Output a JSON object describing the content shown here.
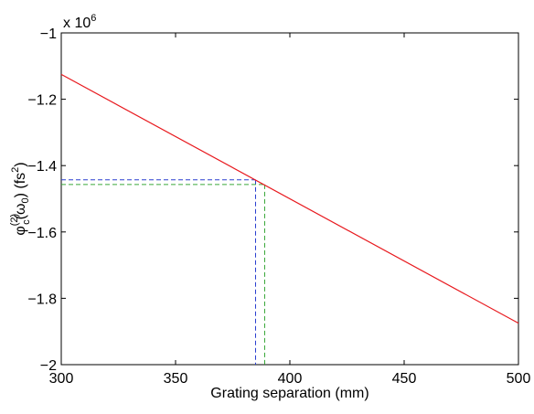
{
  "chart_data": {
    "type": "line",
    "xlabel": "Grating separation (mm)",
    "ylabel": {
      "phi": "φ",
      "sup": "(2)",
      "sub_c": "c",
      "omega": "(ω",
      "sub_0": "0",
      "rest": ") (fs",
      "sup2": "2",
      "close": ")"
    },
    "multiplier": {
      "base": "x 10",
      "exp": "6"
    },
    "xlim": [
      300,
      500
    ],
    "ylim": [
      -2.0,
      -1.0
    ],
    "x_ticks": [
      {
        "value": 300,
        "label": "300"
      },
      {
        "value": 350,
        "label": "350"
      },
      {
        "value": 400,
        "label": "400"
      },
      {
        "value": 450,
        "label": "450"
      },
      {
        "value": 500,
        "label": "500"
      }
    ],
    "y_ticks": [
      {
        "value": -1.0,
        "label": "−1"
      },
      {
        "value": -1.2,
        "label": "−1.2"
      },
      {
        "value": -1.4,
        "label": "−1.4"
      },
      {
        "value": -1.6,
        "label": "−1.6"
      },
      {
        "value": -1.8,
        "label": "−1.8"
      },
      {
        "value": -2.0,
        "label": "−2"
      }
    ],
    "grid": false,
    "series": [
      {
        "color": "#e8191e",
        "style": "solid",
        "x": [
          300,
          500
        ],
        "y": [
          -1.125,
          -1.875
        ]
      }
    ],
    "reference_lines": [
      {
        "color": "#2a3fcf",
        "x": 385,
        "y": -1.443
      },
      {
        "color": "#3aa83a",
        "x": 389,
        "y": -1.457
      }
    ]
  }
}
